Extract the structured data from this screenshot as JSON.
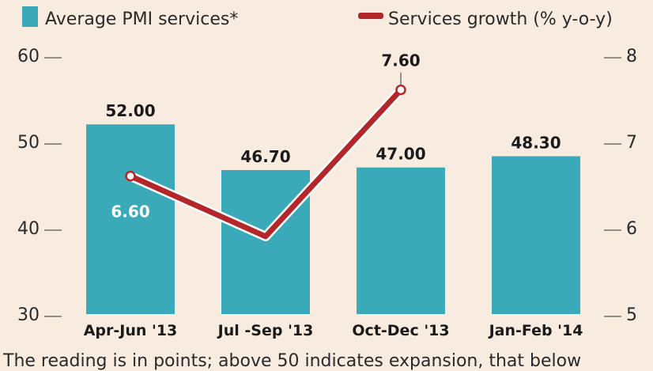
{
  "chart_data": {
    "type": "bar+line",
    "categories": [
      "Apr-Jun '13",
      "Jul -Sep '13",
      "Oct-Dec '13",
      "Jan-Feb '14"
    ],
    "bar_series": {
      "name": "Average PMI services*",
      "values": [
        52.0,
        46.7,
        47.0,
        48.3
      ],
      "labels": [
        "52.00",
        "46.70",
        "47.00",
        "48.30"
      ],
      "color": "#3aaab8"
    },
    "line_series": {
      "name": "Services growth (% y-o-y)",
      "values": [
        6.6,
        5.9,
        7.6
      ],
      "labels": [
        "6.60",
        "",
        "7.60"
      ],
      "color": "#b3272a"
    },
    "y_left": {
      "min": 30,
      "max": 60,
      "ticks": [
        "30",
        "40",
        "50",
        "60"
      ]
    },
    "y_right": {
      "min": 5,
      "max": 8,
      "ticks": [
        "5",
        "6",
        "7",
        "8"
      ]
    },
    "footnote": "The reading is in points; above 50 indicates expansion, that below"
  }
}
